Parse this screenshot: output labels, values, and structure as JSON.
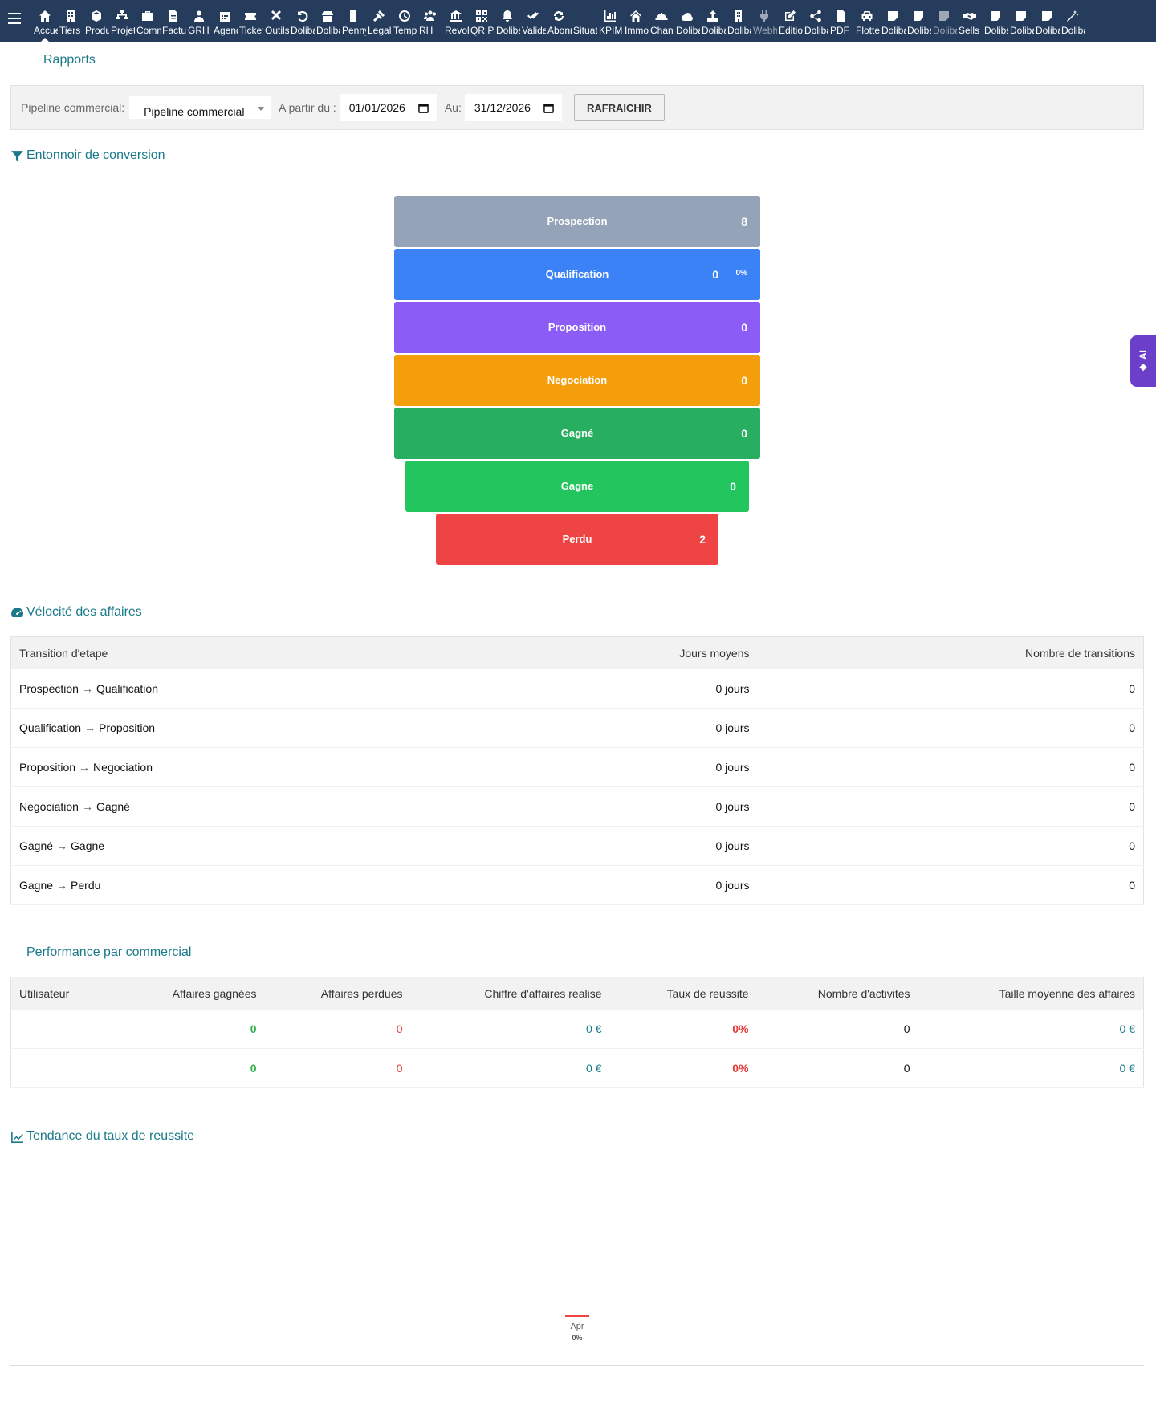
{
  "menu": [
    {
      "label": "Accueil",
      "icon": "home-icon",
      "active": true
    },
    {
      "label": "Tiers",
      "icon": "building-icon"
    },
    {
      "label": "Produits",
      "icon": "cube-icon"
    },
    {
      "label": "Projets",
      "icon": "sitemap-icon"
    },
    {
      "label": "Commercial",
      "icon": "briefcase-icon"
    },
    {
      "label": "Facturation",
      "icon": "invoice-icon"
    },
    {
      "label": "GRH",
      "icon": "users-icon"
    },
    {
      "label": "Agenda",
      "icon": "calendar-icon"
    },
    {
      "label": "Tickets",
      "icon": "ticket-icon"
    },
    {
      "label": "Outils",
      "icon": "tools-icon"
    },
    {
      "label": "Dolibarr",
      "icon": "undo-icon"
    },
    {
      "label": "Dolibarr",
      "icon": "shop-icon"
    },
    {
      "label": "Pennylane",
      "icon": "doc-icon"
    },
    {
      "label": "Legal",
      "icon": "gavel-icon"
    },
    {
      "label": "Temps",
      "icon": "clock-icon"
    },
    {
      "label": "RH",
      "icon": "team-icon"
    },
    {
      "label": "Revolut",
      "icon": "bank-icon"
    },
    {
      "label": "QR Pay",
      "icon": "qrcode-icon"
    },
    {
      "label": "Dolibarr",
      "icon": "bell-icon"
    },
    {
      "label": "Validation",
      "icon": "double-check-icon"
    },
    {
      "label": "Abonnements",
      "icon": "refresh-icon"
    },
    {
      "label": "Situation",
      "icon": "blank-icon"
    },
    {
      "label": "KPIMax",
      "icon": "bar-chart-icon"
    },
    {
      "label": "Immobilier",
      "icon": "house-icon"
    },
    {
      "label": "Chantier",
      "icon": "hardhat-icon"
    },
    {
      "label": "Dolibarr",
      "icon": "cloud-icon"
    },
    {
      "label": "Dolibarr",
      "icon": "upload-icon"
    },
    {
      "label": "Dolibarr",
      "icon": "tower-icon"
    },
    {
      "label": "Webhooks",
      "icon": "plug-icon",
      "dim": true
    },
    {
      "label": "Editions",
      "icon": "edit-icon"
    },
    {
      "label": "Dolibarr",
      "icon": "share-icon"
    },
    {
      "label": "PDF",
      "icon": "pdf-icon"
    },
    {
      "label": "Flotte",
      "icon": "car-icon"
    },
    {
      "label": "Dolibarr",
      "icon": "note-icon"
    },
    {
      "label": "Dolibarr",
      "icon": "note-icon"
    },
    {
      "label": "Dolibarr",
      "icon": "note-icon",
      "dim": true
    },
    {
      "label": "Sells",
      "icon": "handshake-icon"
    },
    {
      "label": "Dolibarr",
      "icon": "note-icon"
    },
    {
      "label": "Dolibarr",
      "icon": "note-icon"
    },
    {
      "label": "Dolibarr",
      "icon": "note-icon"
    },
    {
      "label": "Dolibarr",
      "icon": "magic-icon"
    }
  ],
  "page": {
    "title": "Rapports"
  },
  "filters": {
    "pipeline_label": "Pipeline commercial:",
    "pipeline_value": "Pipeline commercial",
    "from_label": "A partir du :",
    "from_value": "01/01/2026",
    "to_label": "Au:",
    "to_value": "31/12/2026",
    "refresh_label": "RAFRAICHIR"
  },
  "funnel": {
    "title": "Entonnoir de conversion",
    "stages": [
      {
        "name": "Prospection",
        "count": "8",
        "conversion": "",
        "color": "#94a3b8"
      },
      {
        "name": "Qualification",
        "count": "0",
        "conversion": "→ 0%",
        "color": "#3b82f6"
      },
      {
        "name": "Proposition",
        "count": "0",
        "conversion": "",
        "color": "#8b5cf6"
      },
      {
        "name": "Negociation",
        "count": "0",
        "conversion": "",
        "color": "#f59e0b"
      },
      {
        "name": "Gagné",
        "count": "0",
        "conversion": "",
        "color": "#27ae60"
      },
      {
        "name": "Gagne",
        "count": "0",
        "conversion": "",
        "color": "#22c55e"
      },
      {
        "name": "Perdu",
        "count": "2",
        "conversion": "",
        "color": "#ef4444"
      }
    ]
  },
  "velocity": {
    "title": "Vélocité des affaires",
    "headers": [
      "Transition d'etape",
      "Jours moyens",
      "Nombre de transitions"
    ],
    "rows": [
      {
        "from": "Prospection",
        "to": "Qualification",
        "days": "0 jours",
        "count": "0"
      },
      {
        "from": "Qualification",
        "to": "Proposition",
        "days": "0 jours",
        "count": "0"
      },
      {
        "from": "Proposition",
        "to": "Negociation",
        "days": "0 jours",
        "count": "0"
      },
      {
        "from": "Negociation",
        "to": "Gagné",
        "days": "0 jours",
        "count": "0"
      },
      {
        "from": "Gagné",
        "to": "Gagne",
        "days": "0 jours",
        "count": "0"
      },
      {
        "from": "Gagne",
        "to": "Perdu",
        "days": "0 jours",
        "count": "0"
      }
    ]
  },
  "performance": {
    "title": "Performance par commercial",
    "headers": [
      "Utilisateur",
      "Affaires gagnées",
      "Affaires perdues",
      "Chiffre d'affaires realise",
      "Taux de reussite",
      "Nombre d'activites",
      "Taille moyenne des affaires"
    ],
    "rows": [
      {
        "user": "",
        "won": "0",
        "lost": "0",
        "revenue": "0 €",
        "rate": "0%",
        "activities": "0",
        "avg_size": "0 €"
      },
      {
        "user": "",
        "won": "0",
        "lost": "0",
        "revenue": "0 €",
        "rate": "0%",
        "activities": "0",
        "avg_size": "0 €"
      }
    ]
  },
  "trend": {
    "title": "Tendance du taux de reussite",
    "chart_data": {
      "type": "line",
      "categories": [
        "Apr"
      ],
      "series": [
        {
          "values": [
            0
          ]
        }
      ],
      "value_labels": [
        "0%"
      ],
      "color": "#ef4444"
    }
  },
  "ai_tab": {
    "label": "AI"
  },
  "colors": {
    "accent": "#1a7a8a",
    "topbar": "#263c5c",
    "ai": "#6b3fc9"
  }
}
